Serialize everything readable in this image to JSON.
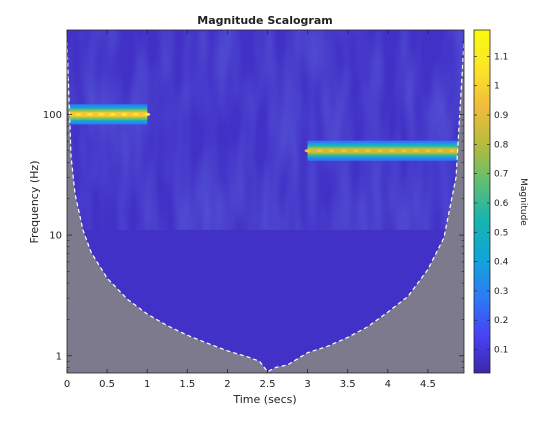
{
  "chart_data": {
    "type": "heatmap",
    "title": "Magnitude Scalogram",
    "xlabel": "Time (secs)",
    "ylabel": "Frequency (Hz)",
    "xlim": [
      0,
      4.95
    ],
    "ylim": [
      0.72,
      500
    ],
    "yscale": "log",
    "x_ticks": [
      0,
      0.5,
      1,
      1.5,
      2,
      2.5,
      3,
      3.5,
      4,
      4.5
    ],
    "x_tick_labels": [
      "0",
      "0.5",
      "1",
      "1.5",
      "2",
      "2.5",
      "3",
      "3.5",
      "4",
      "4.5"
    ],
    "y_ticks": [
      1,
      10,
      100
    ],
    "y_tick_labels": [
      "1",
      "10",
      "100"
    ],
    "colormap": "parula",
    "colormap_stops": [
      "#3e26a8",
      "#4743f7",
      "#2c7cf5",
      "#12a4d8",
      "#14b5b0",
      "#5dbe73",
      "#b7bc3b",
      "#f1bc3b",
      "#fde428",
      "#f9fb0e"
    ],
    "background_magnitude": 0.07,
    "outside_coi_color": "#7c7a8c",
    "coi_line_style": "dashed-white",
    "components": [
      {
        "t_start": 0,
        "t_end": 1,
        "frequency": 100,
        "magnitude": 1.0
      },
      {
        "t_start": 3,
        "t_end": 4.95,
        "frequency": 50,
        "magnitude": 0.88
      }
    ],
    "cone_of_influence": [
      {
        "t": 0,
        "f": 400
      },
      {
        "t": 0.05,
        "f": 45
      },
      {
        "t": 0.1,
        "f": 22
      },
      {
        "t": 0.2,
        "f": 11
      },
      {
        "t": 0.3,
        "f": 7.2
      },
      {
        "t": 0.5,
        "f": 4.4
      },
      {
        "t": 0.75,
        "f": 2.95
      },
      {
        "t": 1,
        "f": 2.22
      },
      {
        "t": 1.25,
        "f": 1.78
      },
      {
        "t": 1.5,
        "f": 1.48
      },
      {
        "t": 1.75,
        "f": 1.27
      },
      {
        "t": 2,
        "f": 1.1
      },
      {
        "t": 2.25,
        "f": 0.98
      },
      {
        "t": 2.4,
        "f": 0.9
      },
      {
        "t": 2.5,
        "f": 0.74
      },
      {
        "t": 2.6,
        "f": 0.8
      },
      {
        "t": 2.75,
        "f": 0.84
      },
      {
        "t": 3,
        "f": 1.06
      },
      {
        "t": 3.25,
        "f": 1.2
      },
      {
        "t": 3.5,
        "f": 1.42
      },
      {
        "t": 3.75,
        "f": 1.74
      },
      {
        "t": 4,
        "f": 2.3
      },
      {
        "t": 4.25,
        "f": 3.1
      },
      {
        "t": 4.5,
        "f": 5.2
      },
      {
        "t": 4.7,
        "f": 9.5
      },
      {
        "t": 4.85,
        "f": 30
      },
      {
        "t": 4.95,
        "f": 400
      }
    ]
  },
  "colorbar": {
    "label": "Magnitude",
    "range": [
      0.02,
      1.19
    ],
    "ticks": [
      0.1,
      0.2,
      0.3,
      0.4,
      0.5,
      0.6,
      0.7,
      0.8,
      0.9,
      1,
      1.1
    ],
    "tick_labels": [
      "0.1",
      "0.2",
      "0.3",
      "0.4",
      "0.5",
      "0.6",
      "0.7",
      "0.8",
      "0.9",
      "1",
      "1.1"
    ]
  }
}
